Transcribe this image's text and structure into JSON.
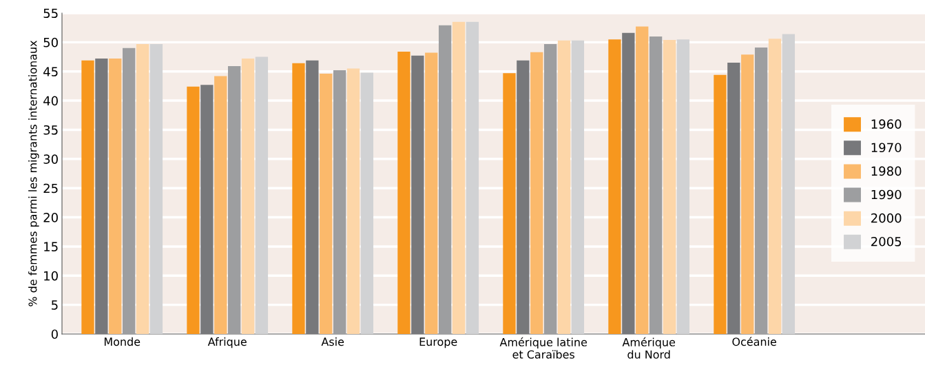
{
  "chart_data": {
    "type": "bar",
    "ylabel": "% de femmes parmi les migrants internationaux",
    "categories": [
      "Monde",
      "Afrique",
      "Asie",
      "Europe",
      "Amérique latine\net Caraïbes",
      "Amérique\ndu Nord",
      "Océanie"
    ],
    "series": [
      {
        "name": "1960",
        "color": "#f7971e",
        "values": [
          46.9,
          42.4,
          46.4,
          48.4,
          44.7,
          50.5,
          44.4
        ]
      },
      {
        "name": "1970",
        "color": "#77787b",
        "values": [
          47.2,
          42.7,
          46.9,
          47.7,
          46.9,
          51.6,
          46.5
        ]
      },
      {
        "name": "1980",
        "color": "#fbb96b",
        "values": [
          47.2,
          44.2,
          44.6,
          48.2,
          48.3,
          52.7,
          47.9
        ]
      },
      {
        "name": "1990",
        "color": "#9d9ea0",
        "values": [
          49.0,
          45.9,
          45.2,
          52.9,
          49.7,
          51.0,
          49.1
        ]
      },
      {
        "name": "2000",
        "color": "#fdd6a8",
        "values": [
          49.7,
          47.2,
          45.5,
          53.5,
          50.3,
          50.4,
          50.6
        ]
      },
      {
        "name": "2005",
        "color": "#d1d2d4",
        "values": [
          49.7,
          47.5,
          44.8,
          53.5,
          50.3,
          50.5,
          51.4
        ]
      }
    ],
    "ylim": [
      0,
      55
    ],
    "yticks": [
      0,
      5,
      10,
      15,
      20,
      25,
      30,
      35,
      40,
      45,
      50,
      55
    ],
    "grid": "y",
    "legend": "right"
  }
}
